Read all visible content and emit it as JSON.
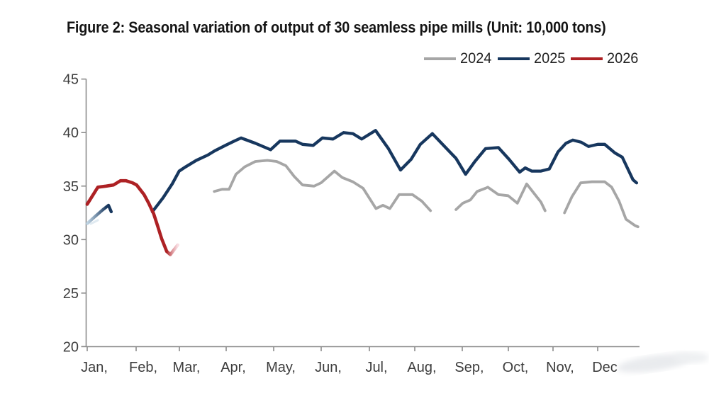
{
  "title": "Figure 2: Seasonal variation of output of 30 seamless pipe mills (Unit: 10,000 tons)",
  "legend": [
    {
      "label": "2024",
      "color": "#a6a6a6"
    },
    {
      "label": "2025",
      "color": "#17375e"
    },
    {
      "label": "2026",
      "color": "#ad2124"
    }
  ],
  "chart_data": {
    "type": "line",
    "title": "Figure 2: Seasonal variation of output of 30 seamless pipe mills",
    "unit": "10,000 tons",
    "x_units": "month fraction (1 = start of Jan, 12.9 = late Dec), weekly data",
    "x_axis": {
      "tick_labels": [
        "Jan,",
        "Feb,",
        "Mar,",
        "Apr,",
        "May,",
        "Jun,",
        "Jul,",
        "Aug,",
        "Sep,",
        "Oct,",
        "Nov,",
        "Dec"
      ]
    },
    "y_axis": {
      "ticks": [
        20,
        25,
        30,
        35,
        40,
        45
      ],
      "range": [
        20,
        45
      ]
    },
    "series": [
      {
        "name": "2024",
        "color": "#a6a6a6",
        "segments": [
          [
            [
              3.75,
              34.5
            ],
            [
              3.92,
              34.7
            ],
            [
              4.07,
              34.7
            ],
            [
              4.22,
              36.1
            ],
            [
              4.41,
              36.8
            ],
            [
              4.64,
              37.3
            ],
            [
              4.9,
              37.4
            ],
            [
              5.1,
              37.3
            ],
            [
              5.3,
              36.9
            ],
            [
              5.48,
              35.9
            ],
            [
              5.66,
              35.1
            ],
            [
              5.91,
              35.0
            ],
            [
              6.06,
              35.3
            ],
            [
              6.35,
              36.4
            ],
            [
              6.52,
              35.8
            ],
            [
              6.75,
              35.4
            ],
            [
              6.97,
              34.8
            ],
            [
              7.25,
              32.9
            ],
            [
              7.4,
              33.2
            ],
            [
              7.55,
              32.9
            ],
            [
              7.75,
              34.2
            ],
            [
              8.04,
              34.2
            ],
            [
              8.24,
              33.6
            ],
            [
              8.43,
              32.7
            ]
          ],
          [
            [
              8.98,
              32.8
            ],
            [
              9.13,
              33.4
            ],
            [
              9.29,
              33.7
            ],
            [
              9.44,
              34.5
            ],
            [
              9.62,
              34.8
            ],
            [
              9.67,
              34.9
            ],
            [
              9.9,
              34.2
            ],
            [
              10.11,
              34.1
            ],
            [
              10.31,
              33.4
            ],
            [
              10.51,
              35.2
            ],
            [
              10.71,
              34.1
            ],
            [
              10.82,
              33.5
            ],
            [
              10.91,
              32.7
            ]
          ],
          [
            [
              11.33,
              32.5
            ],
            [
              11.49,
              34.0
            ],
            [
              11.68,
              35.3
            ],
            [
              11.92,
              35.4
            ],
            [
              12.2,
              35.4
            ],
            [
              12.35,
              34.9
            ],
            [
              12.51,
              33.6
            ],
            [
              12.66,
              31.9
            ],
            [
              12.86,
              31.3
            ],
            [
              12.92,
              31.2
            ]
          ]
        ]
      },
      {
        "name": "2025",
        "color": "#17375e",
        "fade_in": {
          "segment": 0,
          "from_x": 1.0,
          "to_x": 1.42,
          "light_color": "#b6cedf"
        },
        "segments": [
          [
            [
              1.0,
              31.5
            ],
            [
              1.18,
              32.2
            ],
            [
              1.34,
              32.8
            ],
            [
              1.46,
              33.2
            ],
            [
              1.52,
              32.6
            ]
          ],
          [
            [
              2.41,
              32.6
            ],
            [
              2.64,
              33.9
            ],
            [
              2.84,
              35.2
            ],
            [
              2.99,
              36.4
            ],
            [
              3.13,
              36.8
            ],
            [
              3.36,
              37.4
            ],
            [
              3.61,
              37.9
            ],
            [
              3.76,
              38.3
            ],
            [
              3.99,
              38.8
            ],
            [
              4.18,
              39.2
            ],
            [
              4.33,
              39.5
            ],
            [
              4.64,
              39.0
            ],
            [
              4.97,
              38.4
            ],
            [
              5.17,
              39.2
            ],
            [
              5.51,
              39.2
            ],
            [
              5.66,
              38.9
            ],
            [
              5.89,
              38.8
            ],
            [
              6.09,
              39.5
            ],
            [
              6.32,
              39.4
            ],
            [
              6.55,
              40.0
            ],
            [
              6.75,
              39.9
            ],
            [
              6.94,
              39.4
            ],
            [
              7.24,
              40.2
            ],
            [
              7.52,
              38.5
            ],
            [
              7.78,
              36.5
            ],
            [
              8.01,
              37.5
            ],
            [
              8.21,
              38.9
            ],
            [
              8.47,
              39.9
            ],
            [
              8.78,
              38.5
            ],
            [
              8.98,
              37.6
            ],
            [
              9.19,
              36.1
            ],
            [
              9.39,
              37.3
            ],
            [
              9.62,
              38.5
            ],
            [
              9.9,
              38.6
            ],
            [
              10.13,
              37.5
            ],
            [
              10.36,
              36.3
            ],
            [
              10.48,
              36.7
            ],
            [
              10.62,
              36.4
            ],
            [
              10.82,
              36.4
            ],
            [
              11.0,
              36.6
            ],
            [
              11.19,
              38.2
            ],
            [
              11.36,
              39.0
            ],
            [
              11.51,
              39.3
            ],
            [
              11.69,
              39.1
            ],
            [
              11.85,
              38.7
            ],
            [
              12.05,
              38.9
            ],
            [
              12.2,
              38.9
            ],
            [
              12.42,
              38.1
            ],
            [
              12.58,
              37.7
            ],
            [
              12.81,
              35.6
            ],
            [
              12.89,
              35.3
            ]
          ]
        ]
      },
      {
        "name": "2026",
        "color": "#ad2124",
        "segments": [
          [
            [
              1.0,
              33.3
            ],
            [
              1.23,
              34.9
            ],
            [
              1.41,
              35.0
            ],
            [
              1.57,
              35.1
            ],
            [
              1.72,
              35.5
            ],
            [
              1.84,
              35.5
            ],
            [
              1.98,
              35.3
            ],
            [
              2.07,
              35.1
            ],
            [
              2.23,
              34.2
            ],
            [
              2.33,
              33.4
            ],
            [
              2.44,
              32.4
            ],
            [
              2.53,
              31.2
            ],
            [
              2.61,
              30.1
            ],
            [
              2.72,
              28.9
            ]
          ]
        ],
        "fade_tail": {
          "points": [
            [
              2.72,
              28.9
            ],
            [
              2.8,
              28.6
            ],
            [
              2.96,
              29.5
            ]
          ],
          "light_color": "#f2bcc6"
        }
      }
    ]
  }
}
